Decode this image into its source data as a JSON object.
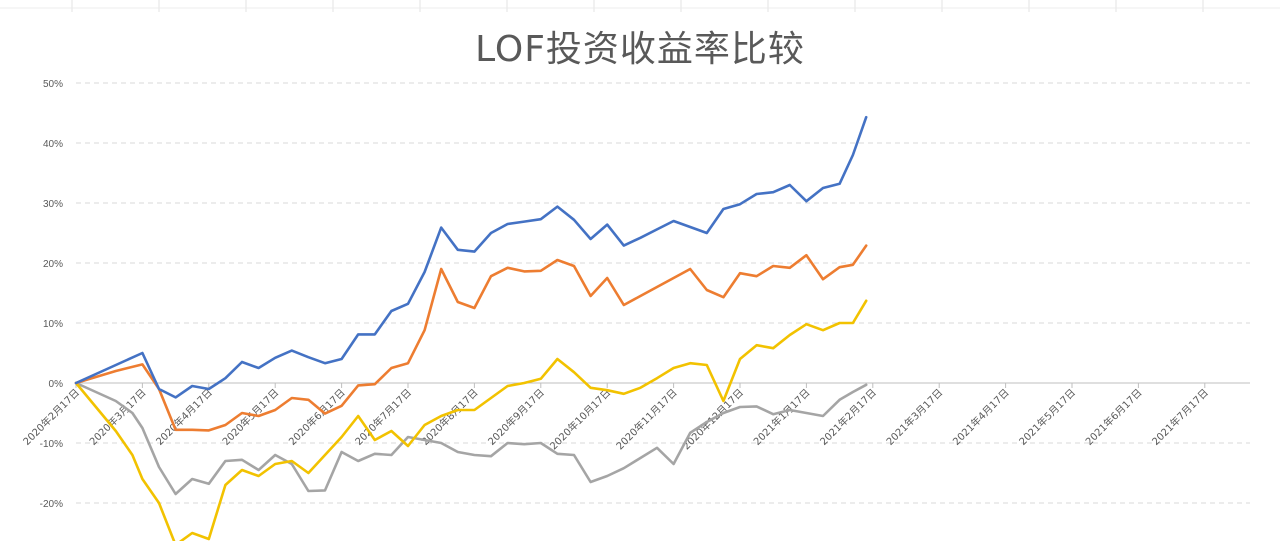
{
  "chart_data": {
    "type": "line",
    "title": "LOF投资收益率比较",
    "xlabel": "",
    "ylabel": "",
    "ylim": [
      -0.2,
      0.5
    ],
    "y_ticks": [
      {
        "value": 0.5,
        "label": "50%"
      },
      {
        "value": 0.4,
        "label": "40%"
      },
      {
        "value": 0.3,
        "label": "30%"
      },
      {
        "value": 0.2,
        "label": "20%"
      },
      {
        "value": 0.1,
        "label": "10%"
      },
      {
        "value": 0.0,
        "label": "0%"
      },
      {
        "value": -0.1,
        "label": "-10%"
      },
      {
        "value": -0.2,
        "label": "-20%"
      }
    ],
    "x_tick_labels": [
      "2020年2月17日",
      "2020年3月17日",
      "2020年4月17日",
      "2020年5月17日",
      "2020年6月17日",
      "2020年7月17日",
      "2020年8月17日",
      "2020年9月17日",
      "2020年10月17日",
      "2020年11月17日",
      "2020年12月17日",
      "2021年1月17日",
      "2021年2月17日",
      "2021年3月17日",
      "2021年4月17日",
      "2021年5月17日",
      "2021年6月17日",
      "2021年7月17日"
    ],
    "x_range_index": [
      0,
      17.4
    ],
    "legend": "none",
    "grid": "horizontal dashed",
    "series": [
      {
        "color": "#4472C4",
        "x": [
          0,
          1.0,
          1.25,
          1.5,
          1.75,
          2.0,
          2.25,
          2.5,
          2.75,
          3.0,
          3.25,
          3.5,
          3.75,
          4.0,
          4.25,
          4.5,
          4.75,
          5.0,
          5.25,
          5.5,
          5.75,
          6.0,
          6.25,
          6.5,
          6.75,
          7.0,
          7.25,
          7.5,
          7.75,
          8.0,
          8.25,
          8.5,
          8.75,
          9.0,
          9.25,
          9.5,
          9.75,
          10.0,
          10.25,
          10.5,
          10.75,
          11.0,
          11.25,
          11.5,
          11.7,
          11.9
        ],
        "y": [
          0,
          0.05,
          -0.01,
          -0.024,
          -0.005,
          -0.01,
          0.008,
          0.035,
          0.025,
          0.042,
          0.054,
          0.043,
          0.033,
          0.04,
          0.081,
          0.081,
          0.12,
          0.132,
          0.185,
          0.259,
          0.222,
          0.219,
          0.25,
          0.265,
          0.269,
          0.273,
          0.294,
          0.272,
          0.24,
          0.264,
          0.229,
          0.242,
          0.256,
          0.27,
          0.26,
          0.25,
          0.29,
          0.298,
          0.315,
          0.318,
          0.33,
          0.303,
          0.325,
          0.332,
          0.38,
          0.443
        ]
      },
      {
        "color": "#ED7D31",
        "x": [
          0,
          0.6,
          1.0,
          1.25,
          1.5,
          1.75,
          2.0,
          2.25,
          2.5,
          2.75,
          3.0,
          3.25,
          3.5,
          3.75,
          4.0,
          4.25,
          4.5,
          4.75,
          5.0,
          5.25,
          5.5,
          5.75,
          6.0,
          6.25,
          6.5,
          6.75,
          7.0,
          7.25,
          7.5,
          7.75,
          8.0,
          8.25,
          8.5,
          8.75,
          9.0,
          9.25,
          9.5,
          9.75,
          10.0,
          10.25,
          10.5,
          10.75,
          11.0,
          11.25,
          11.5,
          11.7,
          11.9
        ],
        "y": [
          0,
          0.02,
          0.031,
          -0.01,
          -0.078,
          -0.078,
          -0.079,
          -0.07,
          -0.05,
          -0.055,
          -0.045,
          -0.025,
          -0.028,
          -0.051,
          -0.038,
          -0.004,
          -0.002,
          0.025,
          0.033,
          0.088,
          0.19,
          0.135,
          0.125,
          0.178,
          0.192,
          0.186,
          0.187,
          0.205,
          0.195,
          0.145,
          0.175,
          0.13,
          0.145,
          0.16,
          0.175,
          0.19,
          0.155,
          0.143,
          0.183,
          0.178,
          0.195,
          0.192,
          0.213,
          0.173,
          0.193,
          0.197,
          0.229
        ]
      },
      {
        "color": "#F2C200",
        "x": [
          0,
          0.3,
          0.6,
          0.85,
          1.0,
          1.25,
          1.5,
          1.75,
          2.0,
          2.25,
          2.5,
          2.75,
          3.0,
          3.25,
          3.5,
          3.75,
          4.0,
          4.25,
          4.5,
          4.75,
          5.0,
          5.25,
          5.5,
          5.75,
          6.0,
          6.25,
          6.5,
          6.75,
          7.0,
          7.25,
          7.5,
          7.75,
          8.0,
          8.25,
          8.5,
          8.75,
          9.0,
          9.25,
          9.5,
          9.75,
          10.0,
          10.25,
          10.5,
          10.75,
          11.0,
          11.25,
          11.5,
          11.7,
          11.9
        ],
        "y": [
          0,
          -0.04,
          -0.08,
          -0.12,
          -0.16,
          -0.2,
          -0.27,
          -0.25,
          -0.26,
          -0.17,
          -0.145,
          -0.155,
          -0.135,
          -0.13,
          -0.15,
          -0.12,
          -0.09,
          -0.055,
          -0.095,
          -0.08,
          -0.105,
          -0.07,
          -0.055,
          -0.045,
          -0.045,
          -0.025,
          -0.005,
          0.0,
          0.007,
          0.04,
          0.018,
          -0.008,
          -0.012,
          -0.018,
          -0.008,
          0.008,
          0.025,
          0.033,
          0.03,
          -0.03,
          0.04,
          0.063,
          0.058,
          0.08,
          0.098,
          0.088,
          0.1,
          0.1,
          0.137
        ]
      },
      {
        "color": "#A5A5A5",
        "x": [
          0,
          0.3,
          0.6,
          0.85,
          1.0,
          1.25,
          1.5,
          1.75,
          2.0,
          2.25,
          2.5,
          2.75,
          3.0,
          3.25,
          3.5,
          3.75,
          4.0,
          4.25,
          4.5,
          4.75,
          5.0,
          5.25,
          5.5,
          5.75,
          6.0,
          6.25,
          6.5,
          6.75,
          7.0,
          7.25,
          7.5,
          7.75,
          8.0,
          8.25,
          8.5,
          8.75,
          9.0,
          9.25,
          9.5,
          9.75,
          10.0,
          10.25,
          10.5,
          10.75,
          11.0,
          11.25,
          11.5,
          11.7,
          11.9
        ],
        "y": [
          0,
          -0.015,
          -0.03,
          -0.05,
          -0.075,
          -0.14,
          -0.185,
          -0.16,
          -0.168,
          -0.13,
          -0.128,
          -0.145,
          -0.12,
          -0.135,
          -0.18,
          -0.179,
          -0.115,
          -0.13,
          -0.118,
          -0.12,
          -0.09,
          -0.095,
          -0.1,
          -0.115,
          -0.12,
          -0.122,
          -0.1,
          -0.102,
          -0.1,
          -0.118,
          -0.12,
          -0.165,
          -0.155,
          -0.142,
          -0.125,
          -0.108,
          -0.135,
          -0.083,
          -0.065,
          -0.05,
          -0.04,
          -0.039,
          -0.052,
          -0.045,
          -0.05,
          -0.055,
          -0.028,
          -0.015,
          -0.003
        ]
      }
    ]
  }
}
